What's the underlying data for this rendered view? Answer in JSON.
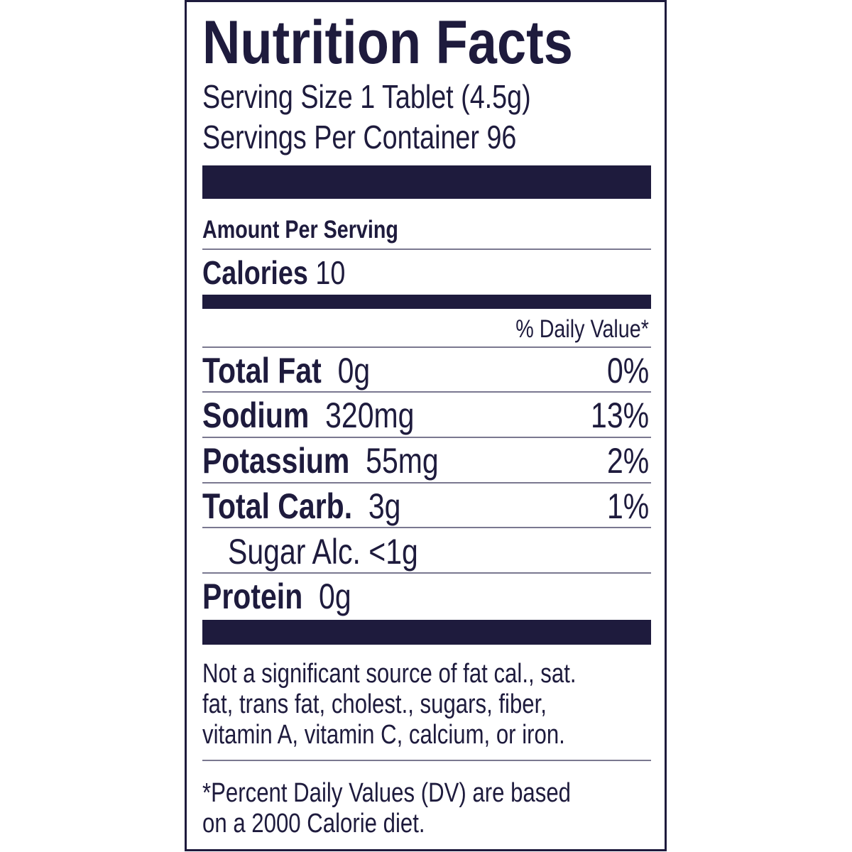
{
  "title": "Nutrition Facts",
  "serving_size": "Serving Size 1 Tablet (4.5g)",
  "servings_per_container": "Servings Per Container 96",
  "amount_per_serving": "Amount Per Serving",
  "calories": {
    "label": "Calories",
    "value": "10"
  },
  "daily_value_header": "% Daily Value*",
  "nutrients": [
    {
      "name": "Total Fat",
      "amount": "0g",
      "dv": "0%"
    },
    {
      "name": "Sodium",
      "amount": "320mg",
      "dv": "13%"
    },
    {
      "name": "Potassium",
      "amount": "55mg",
      "dv": "2%"
    },
    {
      "name": "Total Carb.",
      "amount": "3g",
      "dv": "1%"
    },
    {
      "name": "Sugar Alc.",
      "amount": "<1g",
      "dv": ""
    },
    {
      "name": "Protein",
      "amount": "0g",
      "dv": ""
    }
  ],
  "footnote_lines": [
    "Not a significant source of fat cal., sat.",
    "fat, trans fat, cholest., sugars, fiber,",
    "vitamin A, vitamin C, calcium, or iron."
  ],
  "dv_note_lines": [
    "*Percent Daily Values (DV) are based",
    "on a 2000 Calorie diet."
  ],
  "colors": {
    "ink": "#1e1b3d",
    "background": "#ffffff"
  }
}
